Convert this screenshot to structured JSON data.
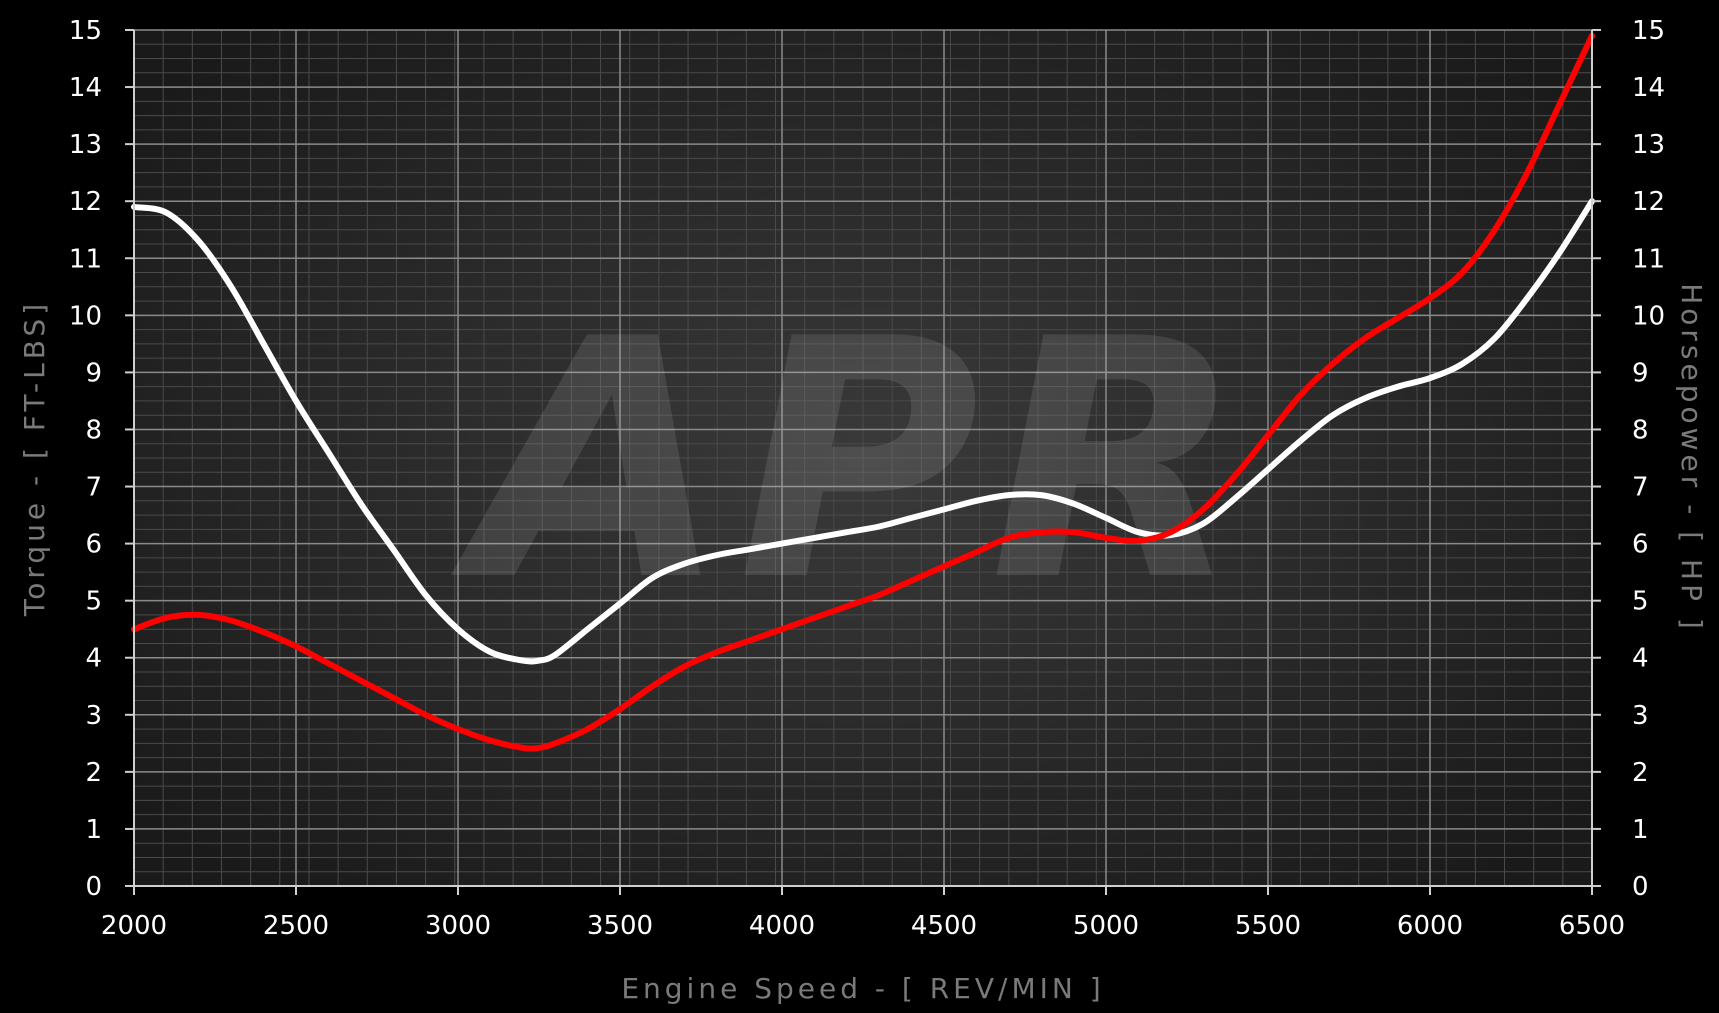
{
  "chart_data": {
    "type": "line",
    "xlabel": "Engine Speed - [ REV/MIN ]",
    "ylabel_left": "Torque - [ FT-LBS]",
    "ylabel_right": "Horsepower - [ HP ]",
    "watermark": "APR",
    "xlim": [
      2000,
      6500
    ],
    "ylim": [
      0,
      15
    ],
    "x_ticks": [
      2000,
      2500,
      3000,
      3500,
      4000,
      4500,
      5000,
      5500,
      6000,
      6500
    ],
    "y_ticks": [
      0,
      1,
      2,
      3,
      4,
      5,
      6,
      7,
      8,
      9,
      10,
      11,
      12,
      13,
      14,
      15
    ],
    "grid": true,
    "series": [
      {
        "color": "#ffffff",
        "x": [
          2000,
          2100,
          2200,
          2300,
          2400,
          2500,
          2600,
          2700,
          2800,
          2900,
          3000,
          3100,
          3200,
          3250,
          3300,
          3400,
          3500,
          3600,
          3700,
          3800,
          3900,
          4000,
          4100,
          4200,
          4300,
          4400,
          4500,
          4600,
          4700,
          4800,
          4900,
          5000,
          5100,
          5200,
          5300,
          5400,
          5500,
          5600,
          5700,
          5800,
          5900,
          6000,
          6100,
          6200,
          6300,
          6400,
          6500
        ],
        "values": [
          11.9,
          11.8,
          11.3,
          10.5,
          9.5,
          8.5,
          7.6,
          6.7,
          5.9,
          5.1,
          4.5,
          4.1,
          3.95,
          3.95,
          4.05,
          4.5,
          4.95,
          5.4,
          5.65,
          5.8,
          5.9,
          6.0,
          6.1,
          6.2,
          6.3,
          6.45,
          6.6,
          6.75,
          6.85,
          6.85,
          6.7,
          6.45,
          6.2,
          6.15,
          6.35,
          6.8,
          7.3,
          7.8,
          8.25,
          8.55,
          8.75,
          8.9,
          9.15,
          9.6,
          10.3,
          11.1,
          12.0
        ]
      },
      {
        "color": "#ff0000",
        "x": [
          2000,
          2100,
          2200,
          2300,
          2400,
          2500,
          2600,
          2700,
          2800,
          2900,
          3000,
          3100,
          3200,
          3250,
          3300,
          3400,
          3500,
          3600,
          3700,
          3800,
          3900,
          4000,
          4100,
          4200,
          4300,
          4400,
          4500,
          4600,
          4700,
          4800,
          4900,
          5000,
          5100,
          5200,
          5300,
          5400,
          5500,
          5600,
          5700,
          5800,
          5900,
          6000,
          6100,
          6200,
          6300,
          6400,
          6500
        ],
        "values": [
          4.5,
          4.7,
          4.75,
          4.65,
          4.45,
          4.2,
          3.9,
          3.6,
          3.3,
          3.0,
          2.75,
          2.55,
          2.42,
          2.42,
          2.5,
          2.75,
          3.1,
          3.5,
          3.85,
          4.1,
          4.3,
          4.5,
          4.7,
          4.9,
          5.1,
          5.35,
          5.6,
          5.85,
          6.1,
          6.2,
          6.2,
          6.1,
          6.05,
          6.2,
          6.6,
          7.2,
          7.9,
          8.6,
          9.15,
          9.6,
          9.95,
          10.3,
          10.75,
          11.5,
          12.5,
          13.7,
          14.9
        ]
      }
    ]
  }
}
